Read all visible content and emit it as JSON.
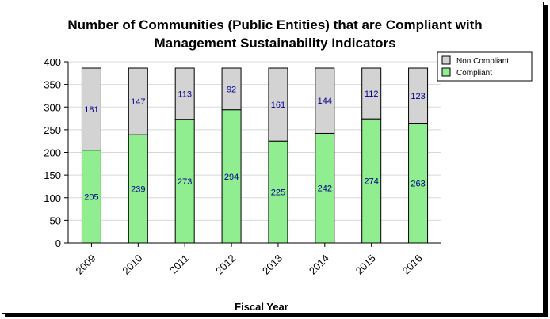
{
  "chart_data": {
    "type": "bar",
    "stacked": true,
    "title_line1": "Number of Communities (Public Entities) that are Compliant with",
    "title_line2": "Management Sustainability Indicators",
    "xlabel": "Fiscal Year",
    "ylabel": "",
    "categories": [
      "2009",
      "2010",
      "2011",
      "2012",
      "2013",
      "2014",
      "2015",
      "2016"
    ],
    "series": [
      {
        "name": "Compliant",
        "color": "#90ee90",
        "values": [
          205,
          239,
          273,
          294,
          225,
          242,
          274,
          263
        ]
      },
      {
        "name": "Non Compliant",
        "color": "#d3d3d3",
        "values": [
          181,
          147,
          113,
          92,
          161,
          144,
          112,
          123
        ]
      }
    ],
    "ylim": [
      0,
      400
    ],
    "yticks": [
      0,
      50,
      100,
      150,
      200,
      250,
      300,
      350,
      400
    ],
    "grid": true,
    "legend": "top-right",
    "label_color": "#00008b"
  }
}
